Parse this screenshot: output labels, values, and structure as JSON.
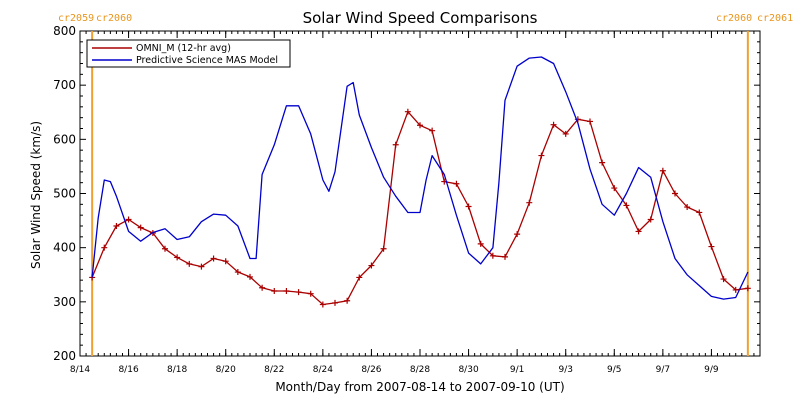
{
  "chart_data": {
    "type": "line",
    "title": "Solar Wind Speed Comparisons",
    "xlabel": "Month/Day from 2007-08-14 to 2007-09-10 (UT)",
    "ylabel": "Solar Wind Speed (km/s)",
    "xlim": [
      "2007-08-14",
      "2007-09-10"
    ],
    "ylim": [
      200,
      800
    ],
    "y_ticks": [
      200,
      300,
      400,
      500,
      600,
      700,
      800
    ],
    "x_tick_labels": [
      "8/14",
      "8/16",
      "8/18",
      "8/20",
      "8/22",
      "8/24",
      "8/26",
      "8/28",
      "8/30",
      "9/1",
      "9/3",
      "9/5",
      "9/7",
      "9/9"
    ],
    "x_tick_dates": [
      "2007-08-14",
      "2007-08-16",
      "2007-08-18",
      "2007-08-20",
      "2007-08-22",
      "2007-08-24",
      "2007-08-26",
      "2007-08-28",
      "2007-08-30",
      "2007-09-01",
      "2007-09-03",
      "2007-09-05",
      "2007-09-07",
      "2007-09-09"
    ],
    "legend_position": "top-left",
    "carrington_markers": [
      {
        "date": "2007-08-14T12:00",
        "label_left": "cr2059",
        "label_right": "cr2060",
        "side": "left"
      },
      {
        "date": "2007-09-10T12:00",
        "label_left": "cr2060",
        "label_right": "cr2061",
        "side": "right"
      }
    ],
    "marker_color": "#f0a030",
    "series": [
      {
        "name": "OMNI_M (12-hr avg)",
        "color": "#aa0000",
        "marker": "plus",
        "x": [
          "2007-08-14T12:00",
          "2007-08-15T00:00",
          "2007-08-15T12:00",
          "2007-08-16T00:00",
          "2007-08-16T12:00",
          "2007-08-17T00:00",
          "2007-08-17T12:00",
          "2007-08-18T00:00",
          "2007-08-18T12:00",
          "2007-08-19T00:00",
          "2007-08-19T12:00",
          "2007-08-20T00:00",
          "2007-08-20T12:00",
          "2007-08-21T00:00",
          "2007-08-21T12:00",
          "2007-08-22T00:00",
          "2007-08-22T12:00",
          "2007-08-23T00:00",
          "2007-08-23T12:00",
          "2007-08-24T00:00",
          "2007-08-24T12:00",
          "2007-08-25T00:00",
          "2007-08-25T12:00",
          "2007-08-26T00:00",
          "2007-08-26T12:00",
          "2007-08-27T00:00",
          "2007-08-27T12:00",
          "2007-08-28T00:00",
          "2007-08-28T12:00",
          "2007-08-29T00:00",
          "2007-08-29T12:00",
          "2007-08-30T00:00",
          "2007-08-30T12:00",
          "2007-08-31T00:00",
          "2007-08-31T12:00",
          "2007-09-01T00:00",
          "2007-09-01T12:00",
          "2007-09-02T00:00",
          "2007-09-02T12:00",
          "2007-09-03T00:00",
          "2007-09-03T12:00",
          "2007-09-04T00:00",
          "2007-09-04T12:00",
          "2007-09-05T00:00",
          "2007-09-05T12:00",
          "2007-09-06T00:00",
          "2007-09-06T12:00",
          "2007-09-07T00:00",
          "2007-09-07T12:00",
          "2007-09-08T00:00",
          "2007-09-08T12:00",
          "2007-09-09T00:00",
          "2007-09-09T12:00",
          "2007-09-10T00:00",
          "2007-09-10T12:00"
        ],
        "values": [
          345,
          400,
          440,
          452,
          437,
          427,
          398,
          382,
          370,
          365,
          380,
          375,
          355,
          346,
          326,
          320,
          320,
          318,
          315,
          295,
          298,
          302,
          345,
          367,
          398,
          590,
          651,
          626,
          616,
          522,
          518,
          476,
          407,
          385,
          383,
          425,
          483,
          570,
          627,
          610,
          637,
          633,
          557,
          510,
          478,
          430,
          452,
          542,
          500,
          475,
          465,
          402,
          342,
          322,
          325
        ]
      },
      {
        "name": "Predictive Science MAS Model",
        "color": "#0000cc",
        "marker": "none",
        "x": [
          "2007-08-14T12:00",
          "2007-08-14T18:00",
          "2007-08-15T00:00",
          "2007-08-15T06:00",
          "2007-08-15T12:00",
          "2007-08-16T00:00",
          "2007-08-16T12:00",
          "2007-08-17T00:00",
          "2007-08-17T12:00",
          "2007-08-18T00:00",
          "2007-08-18T12:00",
          "2007-08-19T00:00",
          "2007-08-19T12:00",
          "2007-08-20T00:00",
          "2007-08-20T12:00",
          "2007-08-21T00:00",
          "2007-08-21T06:00",
          "2007-08-21T12:00",
          "2007-08-22T00:00",
          "2007-08-22T12:00",
          "2007-08-23T00:00",
          "2007-08-23T12:00",
          "2007-08-24T00:00",
          "2007-08-24T06:00",
          "2007-08-24T12:00",
          "2007-08-25T00:00",
          "2007-08-25T06:00",
          "2007-08-25T12:00",
          "2007-08-26T00:00",
          "2007-08-26T12:00",
          "2007-08-27T00:00",
          "2007-08-27T12:00",
          "2007-08-28T00:00",
          "2007-08-28T06:00",
          "2007-08-28T12:00",
          "2007-08-29T00:00",
          "2007-08-29T12:00",
          "2007-08-30T00:00",
          "2007-08-30T12:00",
          "2007-08-31T00:00",
          "2007-08-31T06:00",
          "2007-08-31T12:00",
          "2007-09-01T00:00",
          "2007-09-01T12:00",
          "2007-09-02T00:00",
          "2007-09-02T12:00",
          "2007-09-03T00:00",
          "2007-09-03T12:00",
          "2007-09-04T00:00",
          "2007-09-04T12:00",
          "2007-09-05T00:00",
          "2007-09-05T12:00",
          "2007-09-06T00:00",
          "2007-09-06T12:00",
          "2007-09-07T00:00",
          "2007-09-07T12:00",
          "2007-09-08T00:00",
          "2007-09-08T12:00",
          "2007-09-09T00:00",
          "2007-09-09T12:00",
          "2007-09-10T00:00",
          "2007-09-10T12:00"
        ],
        "values": [
          345,
          455,
          525,
          522,
          495,
          430,
          412,
          428,
          435,
          415,
          420,
          448,
          462,
          460,
          440,
          380,
          380,
          535,
          590,
          662,
          662,
          610,
          525,
          504,
          540,
          698,
          705,
          645,
          585,
          530,
          495,
          465,
          465,
          525,
          570,
          535,
          460,
          390,
          370,
          400,
          520,
          672,
          735,
          750,
          752,
          740,
          688,
          630,
          545,
          480,
          460,
          500,
          548,
          530,
          448,
          380,
          350,
          330,
          310,
          305,
          308,
          355
        ]
      }
    ]
  }
}
